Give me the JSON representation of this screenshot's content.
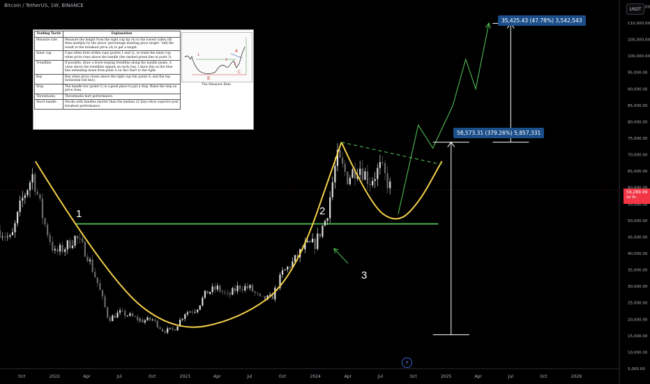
{
  "header": {
    "symbol_line": "Bitcoin / TetherUS, 1W, BINANCE",
    "currency": "USDT"
  },
  "price_tag": {
    "price": "59,289.99",
    "countdown": "4d 9h"
  },
  "table": {
    "headers": [
      "Trading Tactic",
      "Explanation"
    ],
    "rows": [
      {
        "tactic": "Measure rule",
        "text": "Measure the height from the right cup lip (A) to the lowest valley (B) then multiply by the above 'percentage meeting price target.' Add the result to the breakout price (A) to get a target."
      },
      {
        "tactic": "Inner cup",
        "text": "Cups often form within cups (points 1 and 2), so trade the inner cup when price rises above the handle (the dashed green line at point 3)."
      },
      {
        "tactic": "Trendline",
        "text": "If possible, draw a down-sloping trendline along the handle peaks. A close above the trendline signals an early buy. I show this as the blue line extending down from point A on the chart to the right."
      },
      {
        "tactic": "Buy",
        "text": "Buy when price closes above the right cup rim (point A, and the top horizontal red line)."
      },
      {
        "tactic": "Stop",
        "text": "The handle low (point C) is a good place to put a stop. Raise the stop as price rises."
      },
      {
        "tactic": "Throwbacks",
        "text": "Throwbacks hurt performance."
      },
      {
        "tactic": "Short handle",
        "text": "Stocks with handles shorter than the median 22 days show superior post breakout performance."
      }
    ],
    "figure_caption": "The Measure Rule",
    "figure_labels": [
      "1",
      "2",
      "3",
      "A",
      "B",
      "C"
    ]
  },
  "annotations": {
    "upper_label": "35,425.43 (47.78%) 3,542,543",
    "lower_label": "58,573.31 (379.26%) 5,857,331",
    "points": [
      "1",
      "2",
      "3"
    ]
  },
  "chart_data": {
    "type": "candlestick",
    "y_axis": {
      "min": 5000,
      "max": 117000,
      "scale": "linear",
      "ticks": [
        5000,
        10000,
        15000,
        20000,
        25000,
        30000,
        35000,
        40000,
        45000,
        50000,
        55000,
        60000,
        65000,
        70000,
        75000,
        80000,
        85000,
        90000,
        95000,
        100000,
        105000,
        110000,
        115000
      ],
      "tick_labels": [
        "5,000.00",
        "10,000.00",
        "15,000.00",
        "20,000.00",
        "25,000.00",
        "30,000.00",
        "35,000.00",
        "40,000.00",
        "45,000.00",
        "50,000.00",
        "55,000.00",
        "60,000.00",
        "65,000.00",
        "70,000.00",
        "75,000.00",
        "80,000.00",
        "85,000.00",
        "90,000.00",
        "95,000.00",
        "100,000.00",
        "105,000.00",
        "110,000.00",
        "115,000.00"
      ]
    },
    "x_axis": {
      "start": "2021-08-01",
      "end": "2026-05-01",
      "tick_dates": [
        "2021-10-01",
        "2022-01-01",
        "2022-04-01",
        "2022-07-01",
        "2022-10-01",
        "2023-01-01",
        "2023-04-01",
        "2023-07-01",
        "2023-10-01",
        "2024-01-01",
        "2024-04-01",
        "2024-07-01",
        "2024-10-01",
        "2025-01-01",
        "2025-04-01",
        "2025-07-01",
        "2025-10-01",
        "2026-01-01"
      ],
      "tick_labels": [
        "Oct",
        "2022",
        "Apr",
        "Jul",
        "Oct",
        "2023",
        "Apr",
        "Jul",
        "Oct",
        "2024",
        "Apr",
        "Jul",
        "Oct",
        "2025",
        "Apr",
        "Jul",
        "Oct",
        "2026"
      ]
    },
    "last_price": 59289.99,
    "price_path": [
      [
        "2021-08-01",
        47000
      ],
      [
        "2021-09-01",
        44000
      ],
      [
        "2021-10-01",
        56000
      ],
      [
        "2021-11-01",
        64000
      ],
      [
        "2021-12-01",
        50000
      ],
      [
        "2022-01-01",
        40000
      ],
      [
        "2022-02-01",
        42000
      ],
      [
        "2022-03-01",
        45000
      ],
      [
        "2022-04-01",
        40000
      ],
      [
        "2022-05-01",
        31000
      ],
      [
        "2022-06-01",
        20000
      ],
      [
        "2022-07-01",
        22000
      ],
      [
        "2022-08-01",
        21000
      ],
      [
        "2022-09-01",
        19500
      ],
      [
        "2022-10-01",
        20000
      ],
      [
        "2022-11-01",
        16500
      ],
      [
        "2022-12-01",
        16800
      ],
      [
        "2023-01-01",
        22000
      ],
      [
        "2023-02-01",
        23000
      ],
      [
        "2023-03-01",
        28000
      ],
      [
        "2023-04-01",
        29500
      ],
      [
        "2023-05-01",
        27000
      ],
      [
        "2023-06-01",
        30000
      ],
      [
        "2023-07-01",
        29500
      ],
      [
        "2023-08-01",
        26000
      ],
      [
        "2023-09-01",
        26500
      ],
      [
        "2023-10-01",
        34000
      ],
      [
        "2023-11-01",
        37500
      ],
      [
        "2023-12-01",
        42000
      ],
      [
        "2024-01-01",
        43000
      ],
      [
        "2024-02-01",
        51000
      ],
      [
        "2024-03-01",
        69000
      ],
      [
        "2024-04-01",
        63000
      ],
      [
        "2024-05-01",
        67000
      ],
      [
        "2024-06-01",
        62000
      ],
      [
        "2024-07-01",
        66000
      ],
      [
        "2024-08-01",
        59300
      ]
    ],
    "cup_curves": [
      [
        [
          "2021-11-08",
          68000
        ],
        [
          "2022-06-01",
          32000
        ],
        [
          "2022-12-01",
          16000
        ],
        [
          "2023-06-01",
          20000
        ],
        [
          "2023-11-01",
          32000
        ],
        [
          "2024-03-14",
          73800
        ]
      ],
      [
        [
          "2024-03-14",
          73800
        ],
        [
          "2024-06-01",
          55000
        ],
        [
          "2024-08-15",
          49000
        ],
        [
          "2024-10-15",
          55000
        ],
        [
          "2024-12-20",
          68000
        ]
      ]
    ],
    "neckline": {
      "price": 49000,
      "from": "2022-03-01",
      "to": "2024-12-10"
    },
    "handle_trendline": [
      [
        "2024-03-14",
        73800
      ],
      [
        "2024-12-20",
        67000
      ]
    ],
    "projection_path": [
      [
        "2024-08-20",
        52000
      ],
      [
        "2024-10-15",
        79000
      ],
      [
        "2024-11-25",
        72000
      ],
      [
        "2025-01-20",
        85000
      ],
      [
        "2025-02-25",
        99000
      ],
      [
        "2025-03-25",
        90000
      ],
      [
        "2025-05-01",
        110000
      ]
    ],
    "measure_lines": [
      {
        "date": "2025-01-15",
        "from": 15300,
        "to": 73800
      },
      {
        "date": "2025-07-01",
        "from": 73800,
        "to": 109900
      }
    ],
    "point_labels": [
      {
        "text": "1",
        "date": "2022-03-10",
        "price": 53000
      },
      {
        "text": "2",
        "date": "2024-02-20",
        "price": 53000
      },
      {
        "text": "3",
        "date": "2024-04-20",
        "price": 32500
      }
    ],
    "arrow_3": {
      "from": [
        "2024-04-01",
        37000
      ],
      "to": [
        "2024-02-22",
        41500
      ]
    }
  }
}
